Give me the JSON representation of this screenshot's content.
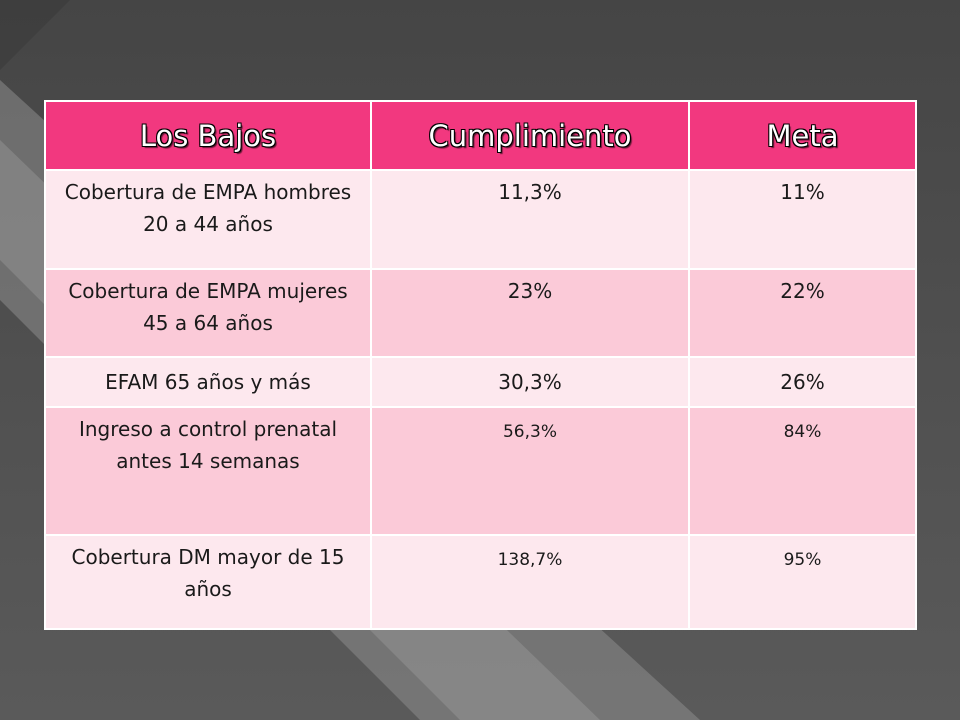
{
  "table": {
    "headers": [
      "Los Bajos",
      "Cumplimiento",
      "Meta"
    ],
    "rows": [
      {
        "label": "Cobertura de EMPA hombres 20 a 44 años",
        "cumplimiento": "11,3%",
        "meta": "11%"
      },
      {
        "label": "Cobertura de EMPA mujeres 45 a 64 años",
        "cumplimiento": "23%",
        "meta": "22%"
      },
      {
        "label": "EFAM 65 años y más",
        "cumplimiento": "30,3%",
        "meta": "26%"
      },
      {
        "label": "Ingreso a control prenatal antes 14 semanas",
        "cumplimiento": "56,3%",
        "meta": "84%"
      },
      {
        "label": "Cobertura DM mayor de 15 años",
        "cumplimiento": "138,7%",
        "meta": "95%"
      }
    ]
  },
  "colors": {
    "background": "#4a4a4a",
    "header": "#f2387f",
    "row_light": "#fde8ee",
    "row_dark": "#fbcad8"
  }
}
